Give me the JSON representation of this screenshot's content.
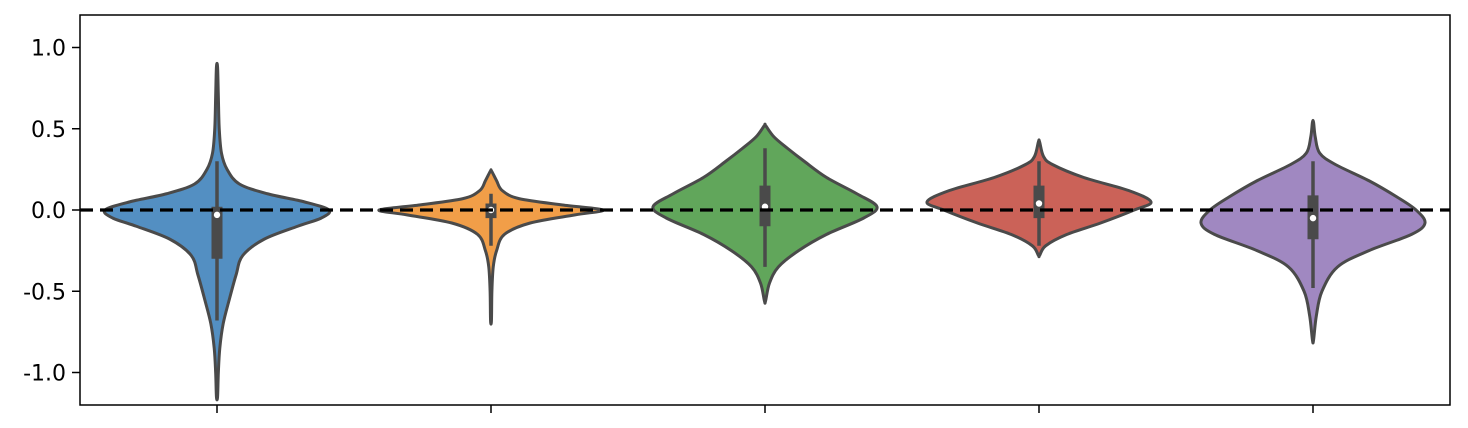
{
  "chart_data": {
    "type": "violin",
    "title": "",
    "xlabel": "",
    "ylabel": "",
    "ylim": [
      -1.2,
      1.2
    ],
    "yticks": [
      -1.0,
      -0.5,
      0.0,
      0.5,
      1.0
    ],
    "ytick_labels": [
      "-1.0",
      "-0.5",
      "0.0",
      "0.5",
      "1.0"
    ],
    "xticks_count": 5,
    "reference_line": {
      "y": 0.0,
      "style": "dashed",
      "color": "#000000"
    },
    "grid": false,
    "violins": [
      {
        "color": "#4a89bf",
        "min": -1.15,
        "max": 0.88,
        "whisker_low": -0.68,
        "whisker_high": 0.3,
        "q1": -0.3,
        "q3": 0.02,
        "median": -0.03,
        "profile": [
          [
            -1.15,
            0.005
          ],
          [
            -1.0,
            0.012
          ],
          [
            -0.85,
            0.025
          ],
          [
            -0.7,
            0.055
          ],
          [
            -0.55,
            0.11
          ],
          [
            -0.4,
            0.17
          ],
          [
            -0.28,
            0.23
          ],
          [
            -0.18,
            0.42
          ],
          [
            -0.1,
            0.72
          ],
          [
            -0.05,
            0.93
          ],
          [
            0.0,
            1.0
          ],
          [
            0.05,
            0.78
          ],
          [
            0.1,
            0.45
          ],
          [
            0.16,
            0.2
          ],
          [
            0.25,
            0.09
          ],
          [
            0.35,
            0.04
          ],
          [
            0.5,
            0.02
          ],
          [
            0.7,
            0.012
          ],
          [
            0.88,
            0.005
          ]
        ]
      },
      {
        "color": "#f0993e",
        "min": -0.68,
        "max": 0.24,
        "whisker_low": -0.22,
        "whisker_high": 0.1,
        "q1": -0.05,
        "q3": 0.04,
        "median": 0.0,
        "profile": [
          [
            -0.68,
            0.004
          ],
          [
            -0.5,
            0.008
          ],
          [
            -0.35,
            0.02
          ],
          [
            -0.25,
            0.05
          ],
          [
            -0.15,
            0.12
          ],
          [
            -0.08,
            0.35
          ],
          [
            -0.03,
            0.75
          ],
          [
            0.0,
            1.0
          ],
          [
            0.03,
            0.65
          ],
          [
            0.07,
            0.25
          ],
          [
            0.12,
            0.1
          ],
          [
            0.18,
            0.05
          ],
          [
            0.24,
            0.005
          ]
        ]
      },
      {
        "color": "#58a152",
        "min": -0.56,
        "max": 0.52,
        "whisker_low": -0.35,
        "whisker_high": 0.38,
        "q1": -0.1,
        "q3": 0.15,
        "median": 0.02,
        "profile": [
          [
            -0.56,
            0.005
          ],
          [
            -0.45,
            0.04
          ],
          [
            -0.35,
            0.12
          ],
          [
            -0.25,
            0.3
          ],
          [
            -0.15,
            0.55
          ],
          [
            -0.05,
            0.88
          ],
          [
            0.02,
            1.0
          ],
          [
            0.1,
            0.82
          ],
          [
            0.2,
            0.55
          ],
          [
            0.3,
            0.35
          ],
          [
            0.38,
            0.2
          ],
          [
            0.45,
            0.08
          ],
          [
            0.52,
            0.005
          ]
        ]
      },
      {
        "color": "#c85a4f",
        "min": -0.28,
        "max": 0.42,
        "whisker_low": -0.22,
        "whisker_high": 0.3,
        "q1": -0.05,
        "q3": 0.15,
        "median": 0.04,
        "profile": [
          [
            -0.28,
            0.005
          ],
          [
            -0.22,
            0.06
          ],
          [
            -0.15,
            0.25
          ],
          [
            -0.08,
            0.55
          ],
          [
            0.0,
            0.85
          ],
          [
            0.05,
            1.0
          ],
          [
            0.12,
            0.8
          ],
          [
            0.2,
            0.4
          ],
          [
            0.28,
            0.12
          ],
          [
            0.33,
            0.04
          ],
          [
            0.42,
            0.005
          ]
        ]
      },
      {
        "color": "#9b82be",
        "min": -0.8,
        "max": 0.54,
        "whisker_low": -0.48,
        "whisker_high": 0.3,
        "q1": -0.18,
        "q3": 0.09,
        "median": -0.05,
        "profile": [
          [
            -0.8,
            0.005
          ],
          [
            -0.65,
            0.03
          ],
          [
            -0.5,
            0.08
          ],
          [
            -0.35,
            0.22
          ],
          [
            -0.25,
            0.5
          ],
          [
            -0.15,
            0.88
          ],
          [
            -0.08,
            1.0
          ],
          [
            0.0,
            0.92
          ],
          [
            0.08,
            0.75
          ],
          [
            0.18,
            0.5
          ],
          [
            0.28,
            0.2
          ],
          [
            0.35,
            0.06
          ],
          [
            0.45,
            0.02
          ],
          [
            0.54,
            0.005
          ]
        ]
      }
    ]
  }
}
